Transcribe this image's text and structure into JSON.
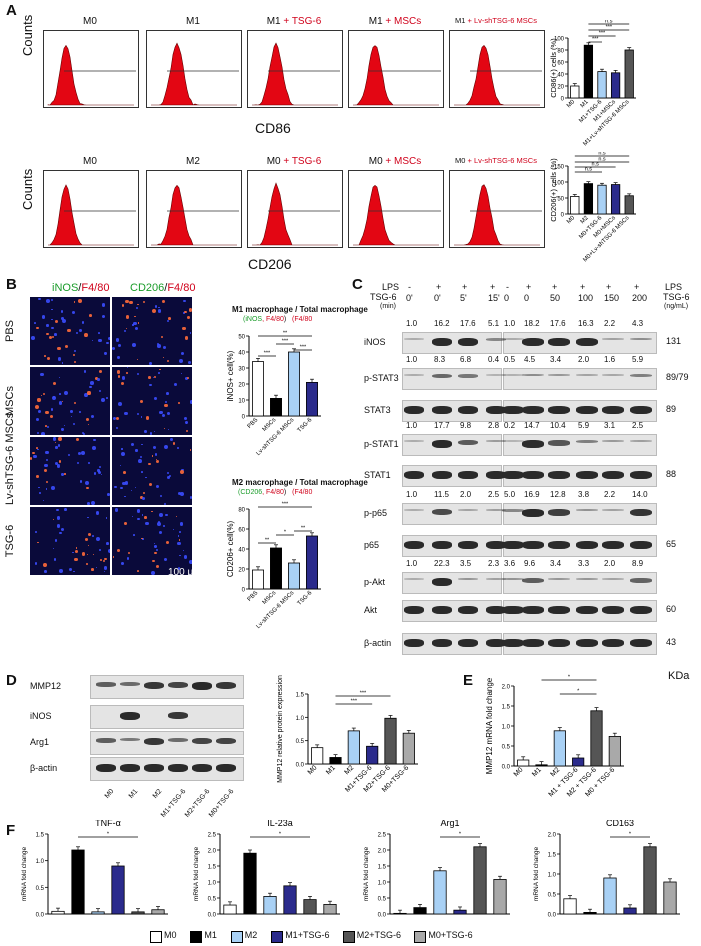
{
  "panelA": {
    "label": "A",
    "row1_titles": [
      {
        "base": "M0",
        "add": ""
      },
      {
        "base": "M1",
        "add": ""
      },
      {
        "base": "M1",
        "add": " + TSG-6"
      },
      {
        "base": "M1",
        "add": " + MSCs"
      },
      {
        "base": "M1",
        "add": " + Lv-shTSG-6 MSCs"
      }
    ],
    "row2_titles": [
      {
        "base": "M0",
        "add": ""
      },
      {
        "base": "M2",
        "add": ""
      },
      {
        "base": "M0",
        "add": " + TSG-6"
      },
      {
        "base": "M0",
        "add": " + MSCs"
      },
      {
        "base": "M0",
        "add": " + Lv-shTSG-6 MSCs"
      }
    ],
    "counts_label": "Counts",
    "xlabel1": "CD86",
    "xlabel2": "CD206"
  },
  "panelB": {
    "label": "B",
    "stain1_green": "iNOS",
    "stain1_red": "F4/80",
    "stain2_green": "CD206",
    "stain2_red": "F4/80",
    "rows": [
      "PBS",
      "MSCs",
      "Lv-shTSG-6 MSCs",
      "TSG-6"
    ],
    "scalebar": "100 μm",
    "m1_title": "M1 macrophage / Total macrophage",
    "m1_sub_a": "(iNOS",
    "m1_sub_b": ", F4/80",
    "m1_sub_c": ")",
    "m1_sub_d": "(F4/80",
    "m2_title": "M2 macrophage / Total macrophage",
    "m2_sub_a": "(CD206",
    "m2_sub_b": ", F4/80",
    "m2_sub_c": ")",
    "m2_sub_d": "(F4/80"
  },
  "panelC": {
    "label": "C",
    "lps": "LPS",
    "tsg": "TSG-6",
    "min": "(min)",
    "ngml": "(ng/mL)",
    "kda": "KDa",
    "left_lps": [
      "-",
      "+",
      "+",
      "+"
    ],
    "left_time": [
      "0'",
      "0'",
      "5'",
      "15'"
    ],
    "right_lps": [
      "-",
      "+",
      "+",
      "+",
      "+",
      "+"
    ],
    "right_dose": [
      "0",
      "0",
      "50",
      "100",
      "150",
      "200"
    ],
    "rows": [
      {
        "name": "iNOS",
        "left": [
          "1.0",
          "16.2",
          "17.6",
          "5.1"
        ],
        "right": [
          "1.0",
          "18.2",
          "17.6",
          "16.3",
          "2.2",
          "4.3"
        ],
        "kda": "131"
      },
      {
        "name": "p-STAT3",
        "left": [
          "1.0",
          "8.3",
          "6.8",
          "0.4"
        ],
        "right": [
          "0.5",
          "4.5",
          "3.4",
          "2.0",
          "1.6",
          "5.9"
        ],
        "kda": "89/79"
      },
      {
        "name": "STAT3",
        "left": [],
        "right": [],
        "kda": "89"
      },
      {
        "name": "p-STAT1",
        "left": [
          "1.0",
          "17.7",
          "9.8",
          "2.8"
        ],
        "right": [
          "0.2",
          "14.7",
          "10.4",
          "5.9",
          "3.1",
          "2.5"
        ],
        "kda": ""
      },
      {
        "name": "STAT1",
        "left": [],
        "right": [],
        "kda": "88"
      },
      {
        "name": "p-p65",
        "left": [
          "1.0",
          "11.5",
          "2.0",
          "2.5"
        ],
        "right": [
          "5.0",
          "16.9",
          "12.8",
          "3.8",
          "2.2",
          "14.0"
        ],
        "kda": ""
      },
      {
        "name": "p65",
        "left": [],
        "right": [],
        "kda": "65"
      },
      {
        "name": "p-Akt",
        "left": [
          "1.0",
          "22.3",
          "3.5",
          "2.3"
        ],
        "right": [
          "3.6",
          "9.6",
          "3.4",
          "3.3",
          "2.0",
          "8.9"
        ],
        "kda": ""
      },
      {
        "name": "Akt",
        "left": [],
        "right": [],
        "kda": "60"
      },
      {
        "name": "β-actin",
        "left": [],
        "right": [],
        "kda": "43"
      }
    ]
  },
  "panelD": {
    "label": "D",
    "blots": [
      "MMP12",
      "iNOS",
      "Arg1",
      "β-actin"
    ],
    "lanes": [
      "M0",
      "M1",
      "M2",
      "M1+TSG-6",
      "M2+TSG-6",
      "M0+TSG-6"
    ],
    "ylabel": "MMP12 relative protein expression"
  },
  "panelE": {
    "label": "E",
    "ylabel": "MMP12 mRNA fold change",
    "lanes": [
      "M0",
      "M1",
      "M2",
      "M1 + TSG-6",
      "M2 + TSG-6",
      "M0 + TSG-6"
    ]
  },
  "panelF": {
    "label": "F",
    "titles": [
      "TNF-α",
      "IL-23a",
      "Arg1",
      "CD163"
    ],
    "ylabel": "mRNA fold change"
  },
  "legend": [
    "M0",
    "M1",
    "M2",
    "M1+TSG-6",
    "M2+TSG-6",
    "M0+TSG-6"
  ],
  "legend_colors": [
    "#ffffff",
    "#000000",
    "#a9d1f5",
    "#2b2b8c",
    "#555555",
    "#a9a9a9"
  ],
  "chart_data": [
    {
      "type": "bar",
      "id": "cd86",
      "ylabel": "CD86(+) cells (%)",
      "categories": [
        "M0",
        "M1",
        "M1+TSG-6",
        "M1+MSCs",
        "M1+Lv-shTSG-6 MSCs"
      ],
      "values": [
        20,
        88,
        44,
        42,
        80
      ],
      "ylim": [
        0,
        100
      ],
      "yticks": [
        0,
        20,
        40,
        60,
        80,
        100
      ],
      "colors": [
        "#ffffff",
        "#000000",
        "#a9d1f5",
        "#2b2b8c",
        "#555555"
      ],
      "sig": [
        "***",
        "***",
        "***",
        "n.s"
      ]
    },
    {
      "type": "bar",
      "id": "cd206",
      "ylabel": "CD206(+) cells (%)",
      "categories": [
        "M0",
        "M2",
        "M0+TSG-6",
        "M0+MSCs",
        "M0+Lv-shTSG-6 MSCs"
      ],
      "values": [
        55,
        95,
        90,
        92,
        57
      ],
      "ylim": [
        0,
        150
      ],
      "yticks": [
        0,
        50,
        100,
        150
      ],
      "colors": [
        "#ffffff",
        "#000000",
        "#a9d1f5",
        "#2b2b8c",
        "#555555"
      ],
      "sig": [
        "n.s",
        "n.s",
        "n.s",
        "n.s"
      ]
    },
    {
      "type": "bar",
      "id": "inos_b",
      "ylabel": "iNOS+ cell(%)",
      "categories": [
        "PBS",
        "MSCs",
        "Lv-shTSG-6 MSCs",
        "TSG-6"
      ],
      "values": [
        34,
        11,
        40,
        21
      ],
      "ylim": [
        0,
        50
      ],
      "yticks": [
        0,
        10,
        20,
        30,
        40,
        50
      ],
      "colors": [
        "#ffffff",
        "#000000",
        "#a9d1f5",
        "#2b2b8c"
      ],
      "sig": [
        "***",
        "***",
        "***",
        "**"
      ]
    },
    {
      "type": "bar",
      "id": "cd206_b",
      "ylabel": "CD206+ cell(%)",
      "categories": [
        "PBS",
        "MSCs",
        "Lv-shTSG-6 MSCs",
        "TSG-6"
      ],
      "values": [
        19,
        41,
        26,
        53
      ],
      "ylim": [
        0,
        80
      ],
      "yticks": [
        0,
        20,
        40,
        60,
        80
      ],
      "colors": [
        "#ffffff",
        "#000000",
        "#a9d1f5",
        "#2b2b8c"
      ],
      "sig": [
        "**",
        "*",
        "**",
        "***"
      ]
    },
    {
      "type": "bar",
      "id": "mmp12_prot",
      "ylabel": "MMP12 relative protein expression",
      "categories": [
        "M0",
        "M1",
        "M2",
        "M1+TSG-6",
        "M2+TSG-6",
        "M0+TSG-6"
      ],
      "values": [
        0.35,
        0.14,
        0.71,
        0.38,
        0.98,
        0.66
      ],
      "ylim": [
        0,
        1.5
      ],
      "yticks": [
        0.0,
        0.5,
        1.0,
        1.5
      ],
      "colors": [
        "#ffffff",
        "#000000",
        "#a9d1f5",
        "#2b2b8c",
        "#555555",
        "#a9a9a9"
      ],
      "sig": [
        "***",
        "***"
      ]
    },
    {
      "type": "bar",
      "id": "mmp12_mrna",
      "ylabel": "MMP12 mRNA fold change",
      "categories": [
        "M0",
        "M1",
        "M2",
        "M1 + TSG-6",
        "M2 + TSG-6",
        "M0 + TSG-6"
      ],
      "values": [
        0.15,
        0.03,
        0.88,
        0.2,
        1.38,
        0.74
      ],
      "ylim": [
        0,
        2.0
      ],
      "yticks": [
        0.0,
        0.5,
        1.0,
        1.5,
        2.0
      ],
      "colors": [
        "#ffffff",
        "#000000",
        "#a9d1f5",
        "#2b2b8c",
        "#555555",
        "#a9a9a9"
      ],
      "sig": [
        "*",
        "*"
      ]
    },
    {
      "type": "bar",
      "id": "tnf",
      "title": "TNF-α",
      "ylabel": "mRNA fold change",
      "categories": [
        "M0",
        "M1",
        "M2",
        "M1+TSG-6",
        "M2+TSG-6",
        "M0+TSG-6"
      ],
      "values": [
        0.05,
        1.2,
        0.04,
        0.9,
        0.04,
        0.08
      ],
      "ylim": [
        0,
        1.5
      ],
      "yticks": [
        0.0,
        0.5,
        1.0,
        1.5
      ],
      "colors": [
        "#ffffff",
        "#000000",
        "#a9d1f5",
        "#2b2b8c",
        "#555555",
        "#a9a9a9"
      ],
      "sig": [
        "*"
      ]
    },
    {
      "type": "bar",
      "id": "il23a",
      "title": "IL-23a",
      "ylabel": "mRNA fold change",
      "categories": [
        "M0",
        "M1",
        "M2",
        "M1+TSG-6",
        "M2+TSG-6",
        "M0+TSG-6"
      ],
      "values": [
        0.28,
        1.9,
        0.55,
        0.88,
        0.45,
        0.3
      ],
      "ylim": [
        0,
        2.5
      ],
      "yticks": [
        0.0,
        0.5,
        1.0,
        1.5,
        2.0,
        2.5
      ],
      "colors": [
        "#ffffff",
        "#000000",
        "#a9d1f5",
        "#2b2b8c",
        "#555555",
        "#a9a9a9"
      ],
      "sig": [
        "*"
      ]
    },
    {
      "type": "bar",
      "id": "arg1",
      "title": "Arg1",
      "ylabel": "mRNA fold change",
      "categories": [
        "M0",
        "M1",
        "M2",
        "M1+TSG-6",
        "M2+TSG-6",
        "M0+TSG-6"
      ],
      "values": [
        0.02,
        0.2,
        1.35,
        0.12,
        2.1,
        1.08
      ],
      "ylim": [
        0,
        2.5
      ],
      "yticks": [
        0.0,
        0.5,
        1.0,
        1.5,
        2.0,
        2.5
      ],
      "colors": [
        "#ffffff",
        "#000000",
        "#a9d1f5",
        "#2b2b8c",
        "#555555",
        "#a9a9a9"
      ],
      "sig": [
        "*"
      ]
    },
    {
      "type": "bar",
      "id": "cd163",
      "title": "CD163",
      "ylabel": "mRNA fold change",
      "categories": [
        "M0",
        "M1",
        "M2",
        "M1+TSG-6",
        "M2+TSG-6",
        "M0+TSG-6"
      ],
      "values": [
        0.38,
        0.04,
        0.9,
        0.15,
        1.68,
        0.8
      ],
      "ylim": [
        0,
        2.0
      ],
      "yticks": [
        0.0,
        0.5,
        1.0,
        1.5,
        2.0
      ],
      "colors": [
        "#ffffff",
        "#000000",
        "#a9d1f5",
        "#2b2b8c",
        "#555555",
        "#a9a9a9"
      ],
      "sig": [
        "*"
      ]
    }
  ]
}
